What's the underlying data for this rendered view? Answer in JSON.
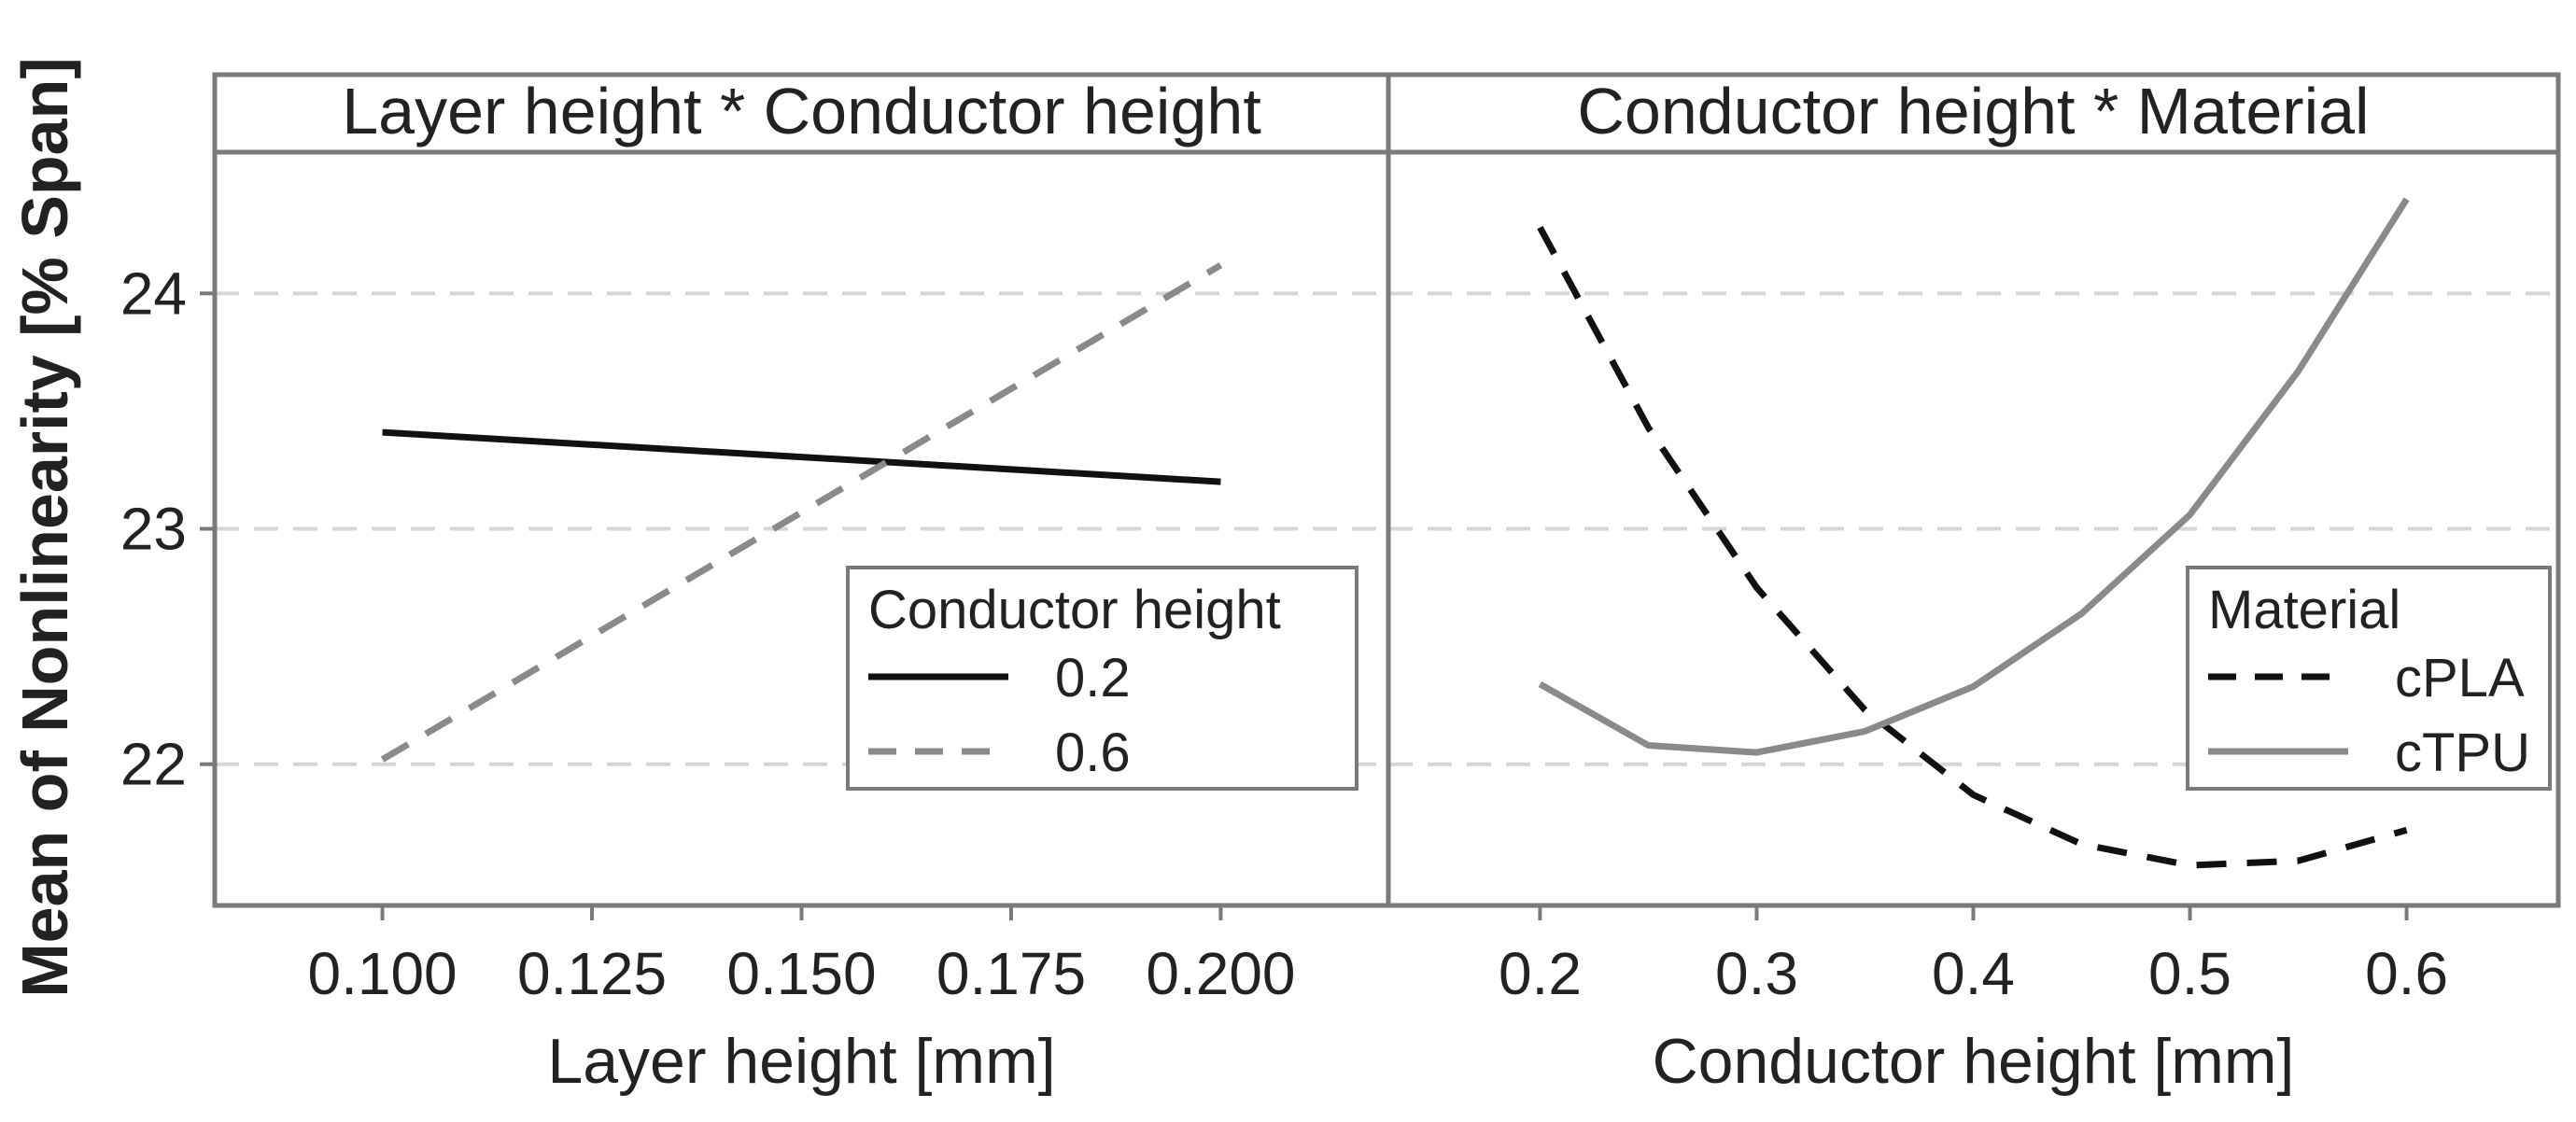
{
  "chart_data": {
    "type": "line",
    "ylabel": "Mean of Nonlinearity [% Span]",
    "ylim": [
      21.4,
      24.6
    ],
    "yticks": [
      22,
      23,
      24
    ],
    "ytick_labels": [
      "22",
      "23",
      "24"
    ],
    "grid": "horizontal dashed",
    "panels": [
      {
        "title": "Layer height * Conductor height",
        "xlabel": "Layer height [mm]",
        "xlim": [
          0.08,
          0.22
        ],
        "xticks": [
          0.1,
          0.125,
          0.15,
          0.175,
          0.2
        ],
        "xtick_labels": [
          "0.100",
          "0.125",
          "0.150",
          "0.175",
          "0.200"
        ],
        "legend": {
          "title": "Conductor height",
          "position": "bottom-right",
          "entries": [
            {
              "label": "0.2",
              "style": "solid",
              "color": "#111111"
            },
            {
              "label": "0.6",
              "style": "dashed",
              "color": "#8a8a8a"
            }
          ]
        },
        "series": [
          {
            "name": "0.2",
            "style": "solid",
            "color": "#111111",
            "x": [
              0.1,
              0.2
            ],
            "y": [
              23.41,
              23.2
            ]
          },
          {
            "name": "0.6",
            "style": "dashed",
            "color": "#8a8a8a",
            "x": [
              0.1,
              0.2
            ],
            "y": [
              22.02,
              24.12
            ]
          }
        ]
      },
      {
        "title": "Conductor height * Material",
        "xlabel": "Conductor height [mm]",
        "xlim": [
          0.13,
          0.67
        ],
        "xticks": [
          0.2,
          0.3,
          0.4,
          0.5,
          0.6
        ],
        "xtick_labels": [
          "0.2",
          "0.3",
          "0.4",
          "0.5",
          "0.6"
        ],
        "legend": {
          "title": "Material",
          "position": "bottom-right",
          "entries": [
            {
              "label": "cPLA",
              "style": "dashed",
              "color": "#111111"
            },
            {
              "label": "cTPU",
              "style": "solid",
              "color": "#8a8a8a"
            }
          ]
        },
        "series": [
          {
            "name": "cPLA",
            "style": "dashed",
            "color": "#111111",
            "x": [
              0.2,
              0.25,
              0.3,
              0.35,
              0.4,
              0.45,
              0.5,
              0.55,
              0.6
            ],
            "y": [
              24.28,
              23.43,
              22.75,
              22.23,
              21.87,
              21.66,
              21.57,
              21.59,
              21.72
            ]
          },
          {
            "name": "cTPU",
            "style": "solid",
            "color": "#8a8a8a",
            "x": [
              0.2,
              0.25,
              0.3,
              0.35,
              0.4,
              0.45,
              0.5,
              0.55,
              0.6
            ],
            "y": [
              22.34,
              22.08,
              22.05,
              22.14,
              22.33,
              22.64,
              23.06,
              23.67,
              24.4
            ]
          }
        ]
      }
    ]
  },
  "colors": {
    "frame": "#7a7a7a",
    "grid": "#d6d6d6",
    "text": "#222222"
  }
}
